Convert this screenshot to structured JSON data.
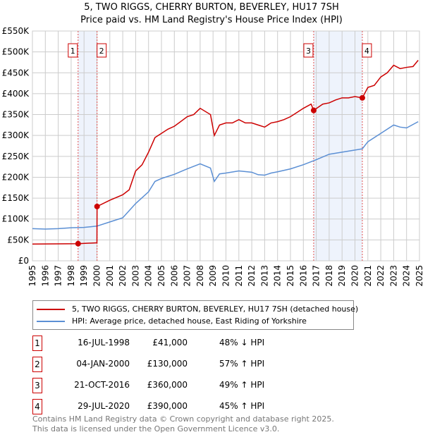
{
  "chart_data": {
    "type": "line",
    "title": "5, TWO RIGGS, CHERRY BURTON, BEVERLEY, HU17 7SH",
    "subtitle": "Price paid vs. HM Land Registry's House Price Index (HPI)",
    "xlim": [
      1995,
      2025
    ],
    "ylim": [
      0,
      550000
    ],
    "yticks": [
      {
        "v": 0,
        "label": "£0"
      },
      {
        "v": 50000,
        "label": "£50K"
      },
      {
        "v": 100000,
        "label": "£100K"
      },
      {
        "v": 150000,
        "label": "£150K"
      },
      {
        "v": 200000,
        "label": "£200K"
      },
      {
        "v": 250000,
        "label": "£250K"
      },
      {
        "v": 300000,
        "label": "£300K"
      },
      {
        "v": 350000,
        "label": "£350K"
      },
      {
        "v": 400000,
        "label": "£400K"
      },
      {
        "v": 450000,
        "label": "£450K"
      },
      {
        "v": 500000,
        "label": "£500K"
      },
      {
        "v": 550000,
        "label": "£550K"
      }
    ],
    "xticks": [
      "1995",
      "1996",
      "1997",
      "1998",
      "1999",
      "2000",
      "2001",
      "2002",
      "2003",
      "2004",
      "2005",
      "2006",
      "2007",
      "2008",
      "2009",
      "2010",
      "2011",
      "2012",
      "2013",
      "2014",
      "2015",
      "2016",
      "2017",
      "2018",
      "2019",
      "2020",
      "2021",
      "2022",
      "2023",
      "2024",
      "2025"
    ],
    "grid": true,
    "series": [
      {
        "name": "5, TWO RIGGS, CHERRY BURTON, BEVERLEY, HU17 7SH (detached house)",
        "color": "#cc0000",
        "points": [
          [
            1995,
            40000
          ],
          [
            1998.54,
            41000
          ],
          [
            2000.0,
            43000
          ],
          [
            2000.01,
            130000
          ],
          [
            2001,
            145000
          ],
          [
            2002,
            158000
          ],
          [
            2002.5,
            170000
          ],
          [
            2003,
            215000
          ],
          [
            2003.5,
            230000
          ],
          [
            2004,
            260000
          ],
          [
            2004.5,
            295000
          ],
          [
            2005,
            305000
          ],
          [
            2005.5,
            315000
          ],
          [
            2006,
            322000
          ],
          [
            2007,
            345000
          ],
          [
            2007.5,
            350000
          ],
          [
            2008,
            365000
          ],
          [
            2008.8,
            350000
          ],
          [
            2009.1,
            300000
          ],
          [
            2009.5,
            325000
          ],
          [
            2010,
            330000
          ],
          [
            2010.5,
            330000
          ],
          [
            2011,
            338000
          ],
          [
            2011.5,
            330000
          ],
          [
            2012,
            330000
          ],
          [
            2012.5,
            325000
          ],
          [
            2013,
            320000
          ],
          [
            2013.5,
            330000
          ],
          [
            2014,
            333000
          ],
          [
            2014.5,
            338000
          ],
          [
            2015,
            345000
          ],
          [
            2015.5,
            355000
          ],
          [
            2016,
            365000
          ],
          [
            2016.6,
            375000
          ],
          [
            2016.8,
            360000
          ],
          [
            2017.5,
            375000
          ],
          [
            2018,
            378000
          ],
          [
            2018.5,
            385000
          ],
          [
            2019,
            390000
          ],
          [
            2019.5,
            390000
          ],
          [
            2020,
            393000
          ],
          [
            2020.57,
            390000
          ],
          [
            2021,
            415000
          ],
          [
            2021.5,
            420000
          ],
          [
            2022,
            440000
          ],
          [
            2022.5,
            450000
          ],
          [
            2023,
            468000
          ],
          [
            2023.5,
            460000
          ],
          [
            2024,
            463000
          ],
          [
            2024.5,
            465000
          ],
          [
            2024.9,
            480000
          ]
        ]
      },
      {
        "name": "HPI: Average price, detached house, East Riding of Yorkshire",
        "color": "#5b8fd4",
        "points": [
          [
            1995,
            77000
          ],
          [
            1996,
            76000
          ],
          [
            1997,
            77000
          ],
          [
            1998,
            79000
          ],
          [
            1999,
            80000
          ],
          [
            2000,
            83000
          ],
          [
            2001,
            93000
          ],
          [
            2002,
            103000
          ],
          [
            2003,
            137000
          ],
          [
            2004,
            165000
          ],
          [
            2004.5,
            190000
          ],
          [
            2005,
            197000
          ],
          [
            2006,
            207000
          ],
          [
            2007,
            220000
          ],
          [
            2008,
            232000
          ],
          [
            2008.8,
            222000
          ],
          [
            2009.1,
            190000
          ],
          [
            2009.5,
            208000
          ],
          [
            2010,
            210000
          ],
          [
            2011,
            215000
          ],
          [
            2012,
            212000
          ],
          [
            2012.5,
            206000
          ],
          [
            2013,
            205000
          ],
          [
            2013.5,
            210000
          ],
          [
            2014,
            213000
          ],
          [
            2015,
            220000
          ],
          [
            2016,
            230000
          ],
          [
            2017,
            242000
          ],
          [
            2018,
            255000
          ],
          [
            2019,
            260000
          ],
          [
            2020,
            265000
          ],
          [
            2020.57,
            268000
          ],
          [
            2021,
            285000
          ],
          [
            2022,
            305000
          ],
          [
            2023,
            325000
          ],
          [
            2023.5,
            320000
          ],
          [
            2024,
            318000
          ],
          [
            2024.9,
            333000
          ]
        ]
      }
    ],
    "sales": [
      {
        "n": "1",
        "x": 1998.54,
        "price": 41000,
        "date": "16-JUL-1998",
        "price_label": "£41,000",
        "hpi": "48% ↓ HPI"
      },
      {
        "n": "2",
        "x": 2000.01,
        "price": 130000,
        "date": "04-JAN-2000",
        "price_label": "£130,000",
        "hpi": "57% ↑ HPI"
      },
      {
        "n": "3",
        "x": 2016.8,
        "price": 360000,
        "date": "21-OCT-2016",
        "price_label": "£360,000",
        "hpi": "49% ↑ HPI"
      },
      {
        "n": "4",
        "x": 2020.57,
        "price": 390000,
        "date": "29-JUL-2020",
        "price_label": "£390,000",
        "hpi": "45% ↑ HPI"
      }
    ],
    "shaded": [
      [
        1998.54,
        2000.01
      ],
      [
        2016.8,
        2020.57
      ]
    ]
  },
  "footer": {
    "line1": "Contains HM Land Registry data © Crown copyright and database right 2025.",
    "line2": "This data is licensed under the Open Government Licence v3.0."
  }
}
